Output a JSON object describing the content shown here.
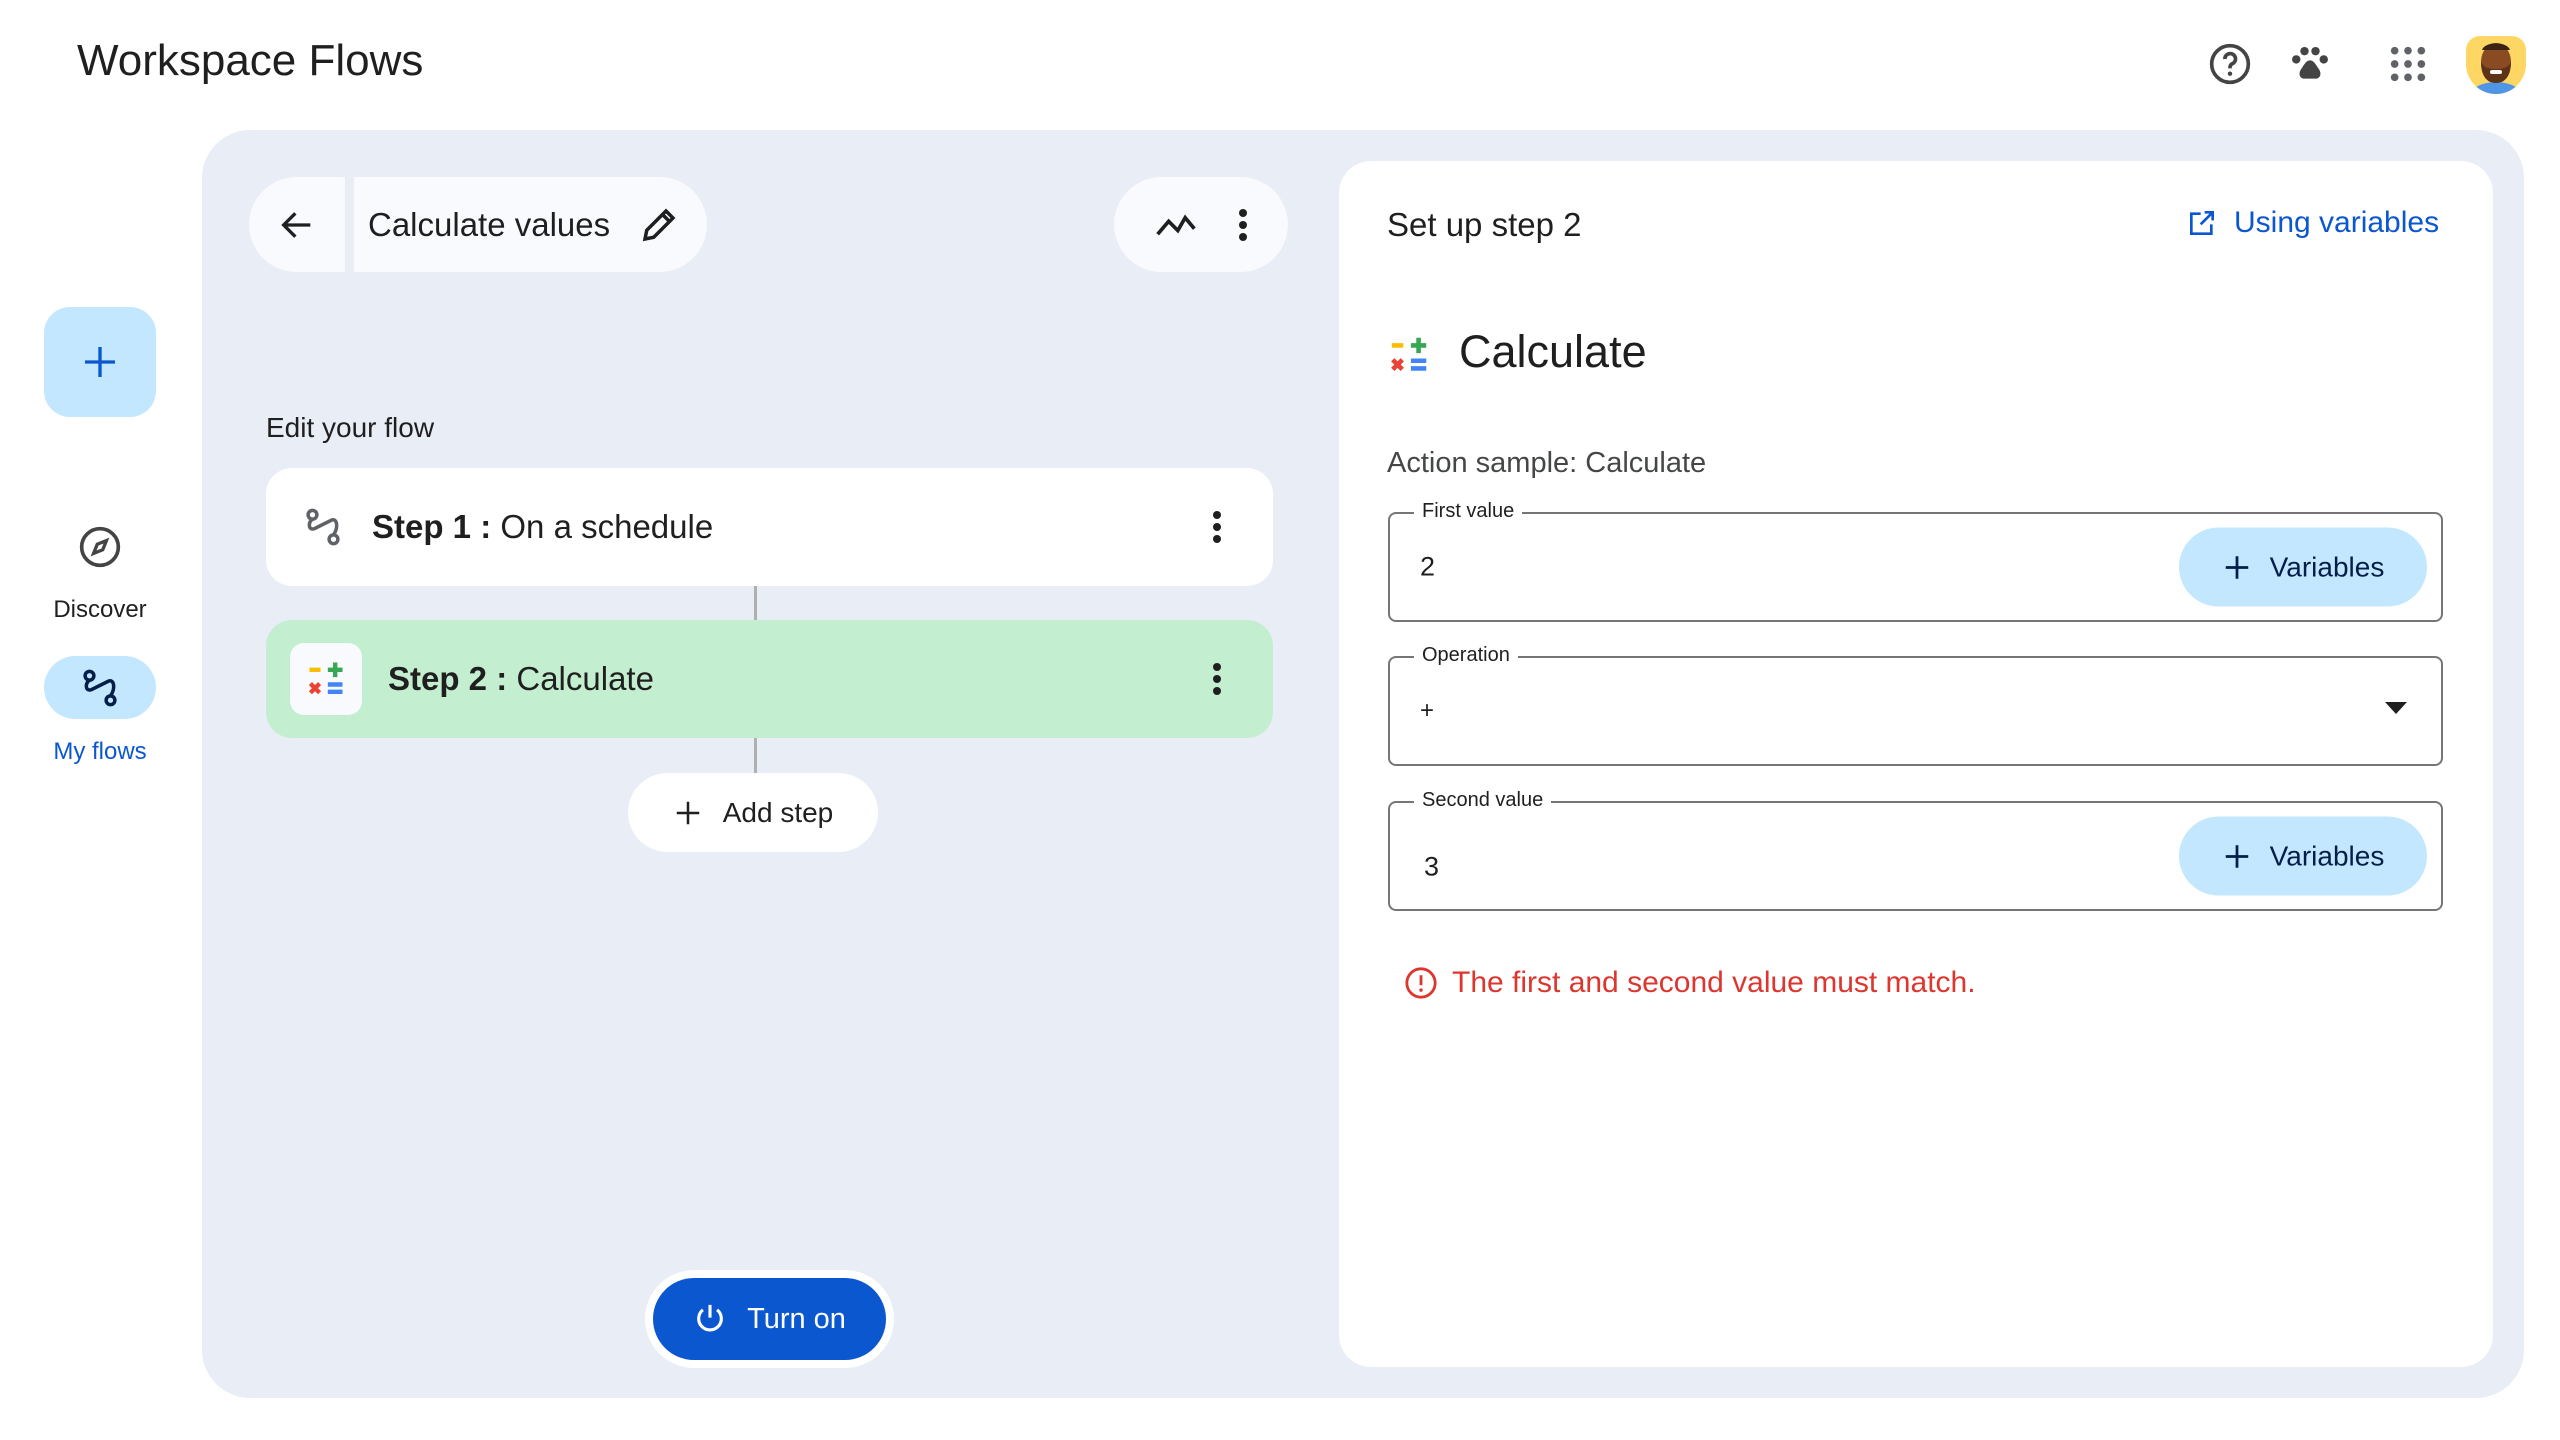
{
  "app": {
    "title": "Workspace Flows"
  },
  "topbar": {
    "icons": [
      "help-icon",
      "paw-icon",
      "apps-grid-icon",
      "avatar"
    ]
  },
  "sidebar": {
    "new_label": "+",
    "items": [
      {
        "label": "Discover",
        "icon": "compass-icon"
      },
      {
        "label": "My flows",
        "icon": "flows-icon",
        "active": true
      }
    ]
  },
  "flow": {
    "name": "Calculate values",
    "section_title": "Edit your flow",
    "steps": [
      {
        "prefix": "Step 1 :",
        "name": "On a schedule"
      },
      {
        "prefix": "Step 2 :",
        "name": "Calculate"
      }
    ],
    "add_step": "Add step",
    "turn_on": "Turn on"
  },
  "panel": {
    "title": "Set up step 2",
    "link": "Using variables",
    "action_title": "Calculate",
    "action_sample": "Action sample: Calculate",
    "fields": [
      {
        "label": "First value",
        "value": "2",
        "button": "Variables"
      },
      {
        "label": "Operation",
        "value": "+"
      },
      {
        "label": "Second value",
        "value": "3",
        "button": "Variables"
      }
    ],
    "error": "The first and second value must match."
  },
  "colors": {
    "accent": "#0b57d0",
    "selected_step": "#c4eed0",
    "error": "#dc362e",
    "fab": "#c2e7ff"
  }
}
